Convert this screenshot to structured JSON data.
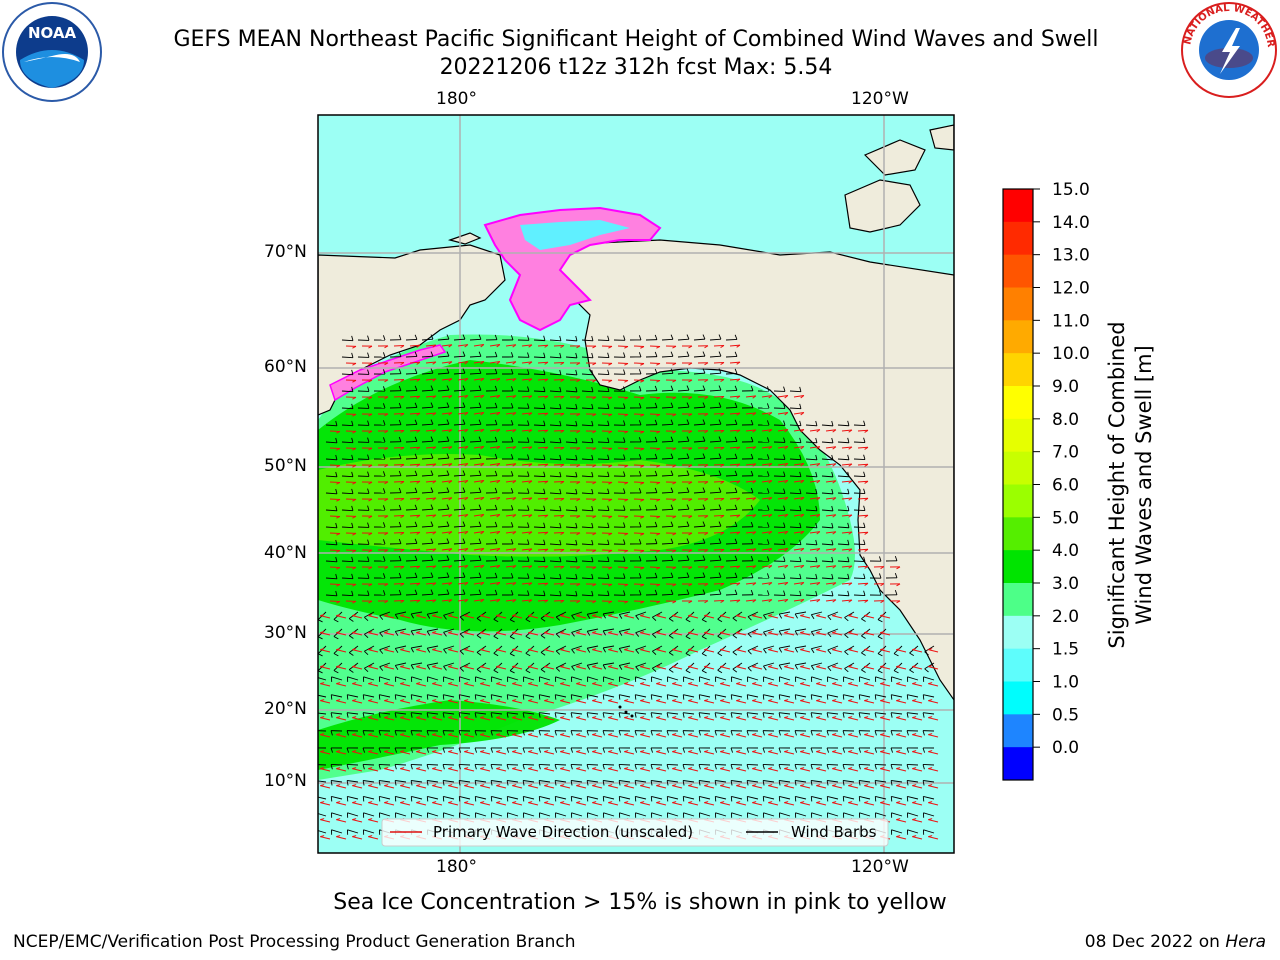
{
  "title": {
    "line1": "GEFS MEAN Northeast Pacific Significant Height of Combined Wind Waves and Swell",
    "line2": "20221206 t12z 312h fcst   Max: 5.54"
  },
  "logos": {
    "left": "NOAA",
    "right": "NATIONAL WEATHER SERVICE"
  },
  "map": {
    "lon_labels_top": [
      "180°",
      "120°W"
    ],
    "lon_labels_bottom": [
      "180°",
      "120°W"
    ],
    "lat_labels": [
      "70°N",
      "60°N",
      "50°N",
      "40°N",
      "30°N",
      "20°N",
      "10°N"
    ],
    "land_color": "#efecdc",
    "legend": {
      "wave_direction": "Primary Wave Direction (unscaled)",
      "wind_barbs": "Wind Barbs"
    }
  },
  "colorbar": {
    "label_line1": "Significant Height of Combined",
    "label_line2": "Wind Waves and Swell [m]",
    "ticks": [
      "15.0",
      "14.0",
      "13.0",
      "12.0",
      "11.0",
      "10.0",
      "9.0",
      "8.0",
      "7.0",
      "6.0",
      "5.0",
      "4.0",
      "3.0",
      "2.0",
      "1.5",
      "1.0",
      "0.5",
      "0.0"
    ],
    "colors_top_to_bottom": [
      "#ff0000",
      "#ff2a00",
      "#ff5500",
      "#ff8000",
      "#ffaa00",
      "#ffd400",
      "#ffff00",
      "#e6ff00",
      "#c8ff00",
      "#9bff00",
      "#55ee00",
      "#00e400",
      "#4dff88",
      "#9cfff4",
      "#5efdfc",
      "#00fdfd",
      "#1e85ff",
      "#0000ff"
    ]
  },
  "notes": {
    "sea_ice": "Sea Ice Concentration > 15% is shown in pink to yellow"
  },
  "footer": {
    "left": "NCEP/EMC/Verification Post Processing Product Generation Branch",
    "right_date": "08 Dec 2022 on",
    "right_host": "Hera"
  }
}
